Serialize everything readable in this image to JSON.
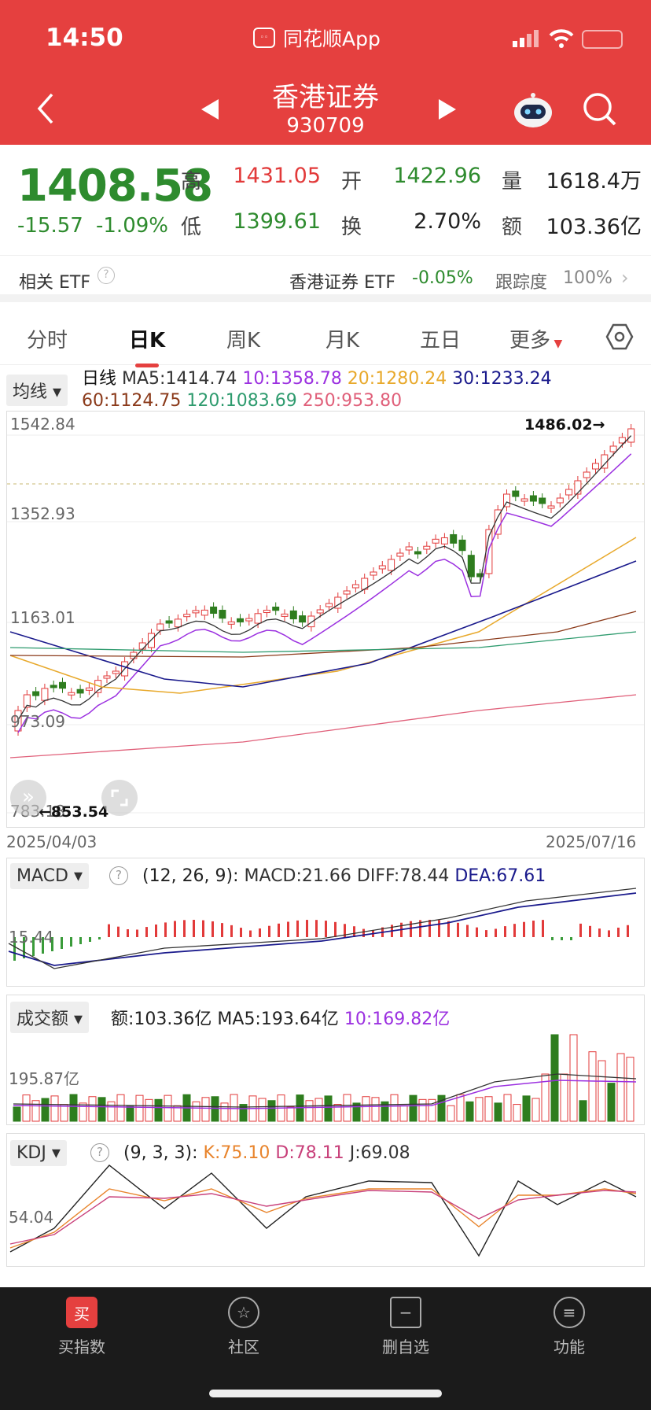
{
  "status_bar": {
    "time": "14:50",
    "app_name": "同花顺App"
  },
  "header": {
    "title": "香港证券",
    "code": "930709"
  },
  "quote": {
    "price": "1408.58",
    "change": "-15.57",
    "change_pct": "-1.09%",
    "high_label": "高",
    "high": "1431.05",
    "low_label": "低",
    "low": "1399.61",
    "open_label": "开",
    "open": "1422.96",
    "turnover_label": "换",
    "turnover": "2.70%",
    "volume_label": "量",
    "volume": "1618.4万",
    "amount_label": "额",
    "amount": "103.36亿"
  },
  "etf": {
    "label": "相关 ETF",
    "name": "香港证券 ETF",
    "change": "-0.05%",
    "track_label": "跟踪度",
    "track": "100%"
  },
  "tabs": [
    "分时",
    "日K",
    "周K",
    "月K",
    "五日",
    "更多"
  ],
  "ma_legend": {
    "selector": "均线",
    "type": "日线",
    "items": [
      {
        "text": "MA5:1414.74",
        "color": "#333333"
      },
      {
        "text": "10:1358.78",
        "color": "#9b30e0"
      },
      {
        "text": "20:1280.24",
        "color": "#e8a92c"
      },
      {
        "text": "30:1233.24",
        "color": "#1a1a8c"
      },
      {
        "text": "60:1124.75",
        "color": "#8b3a1a"
      },
      {
        "text": "120:1083.69",
        "color": "#2e9b6e"
      },
      {
        "text": "250:953.80",
        "color": "#e0607a"
      }
    ]
  },
  "kline": {
    "y_ticks": [
      "1542.84",
      "1352.93",
      "1163.01",
      "973.09",
      "783.18"
    ],
    "high_marker": "1486.02→",
    "low_marker": "←853.54",
    "date_start": "2025/04/03",
    "date_end": "2025/07/16"
  },
  "macd": {
    "selector": "MACD",
    "params": "(12, 26, 9):",
    "macd": "MACD:21.66",
    "diff": "DIFF:78.44",
    "dea": "DEA:67.61",
    "tick": "15.44"
  },
  "volume": {
    "selector": "成交额",
    "amount": "额:103.36亿",
    "ma5": "MA5:193.64亿",
    "ma10": "10:169.82亿",
    "tick": "195.87亿"
  },
  "kdj": {
    "selector": "KDJ",
    "params": "(9, 3, 3):",
    "k": "K:75.10",
    "d": "D:78.11",
    "j": "J:69.08",
    "tick": "54.04"
  },
  "bottom_nav": [
    {
      "label": "买指数",
      "icon": "买"
    },
    {
      "label": "社区",
      "icon": "☆"
    },
    {
      "label": "删自选",
      "icon": "−"
    },
    {
      "label": "功能",
      "icon": "≡"
    }
  ],
  "colors": {
    "up": "#e23a3a",
    "down": "#2e7d1e",
    "brand": "#e5403f"
  }
}
